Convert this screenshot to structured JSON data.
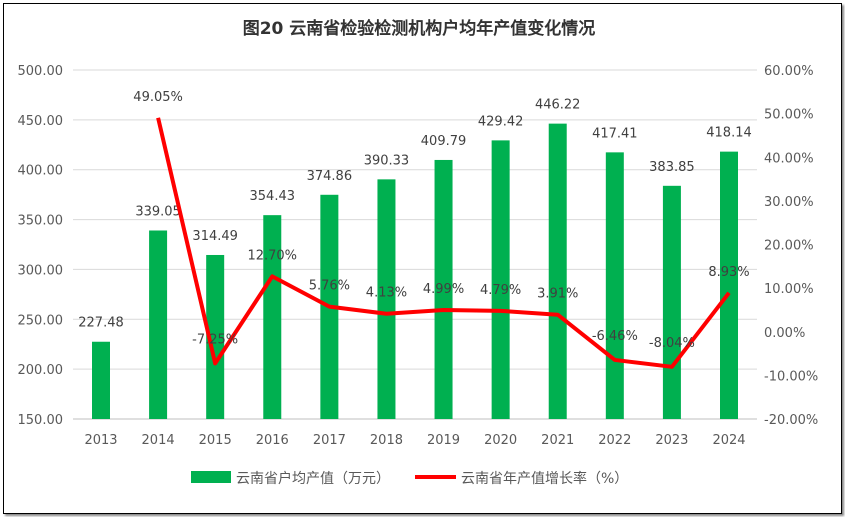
{
  "chart_data": {
    "type": "bar+line",
    "title": "图20  云南省检验检测机构户均年产值变化情况",
    "categories": [
      "2013",
      "2014",
      "2015",
      "2016",
      "2017",
      "2018",
      "2019",
      "2020",
      "2021",
      "2022",
      "2023",
      "2024"
    ],
    "series": [
      {
        "name": "云南省户均产值（万元）",
        "type": "bar",
        "axis": "left",
        "color": "#00B050",
        "values": [
          227.48,
          339.05,
          314.49,
          354.43,
          374.86,
          390.33,
          409.79,
          429.42,
          446.22,
          417.41,
          383.85,
          418.14
        ],
        "labels": [
          "227.48",
          "339.05",
          "314.49",
          "354.43",
          "374.86",
          "390.33",
          "409.79",
          "429.42",
          "446.22",
          "417.41",
          "383.85",
          "418.14"
        ]
      },
      {
        "name": "云南省年产值增长率（%）",
        "type": "line",
        "axis": "right",
        "color": "#FF0000",
        "values": [
          null,
          49.05,
          -7.25,
          12.7,
          5.76,
          4.13,
          4.99,
          4.79,
          3.91,
          -6.46,
          -8.04,
          8.93
        ],
        "labels": [
          "",
          "49.05%",
          "-7.25%",
          "12.70%",
          "5.76%",
          "4.13%",
          "4.99%",
          "4.79%",
          "3.91%",
          "-6.46%",
          "-8.04%",
          "8.93%"
        ]
      }
    ],
    "left_axis": {
      "ylim": [
        150,
        500
      ],
      "ticks": [
        "150.00",
        "200.00",
        "250.00",
        "300.00",
        "350.00",
        "400.00",
        "450.00",
        "500.00"
      ]
    },
    "right_axis": {
      "ylim": [
        -20,
        60
      ],
      "ticks": [
        "-20.00%",
        "-10.00%",
        "0.00%",
        "10.00%",
        "20.00%",
        "30.00%",
        "40.00%",
        "50.00%",
        "60.00%"
      ]
    },
    "grid": true,
    "legend": "bottom"
  }
}
